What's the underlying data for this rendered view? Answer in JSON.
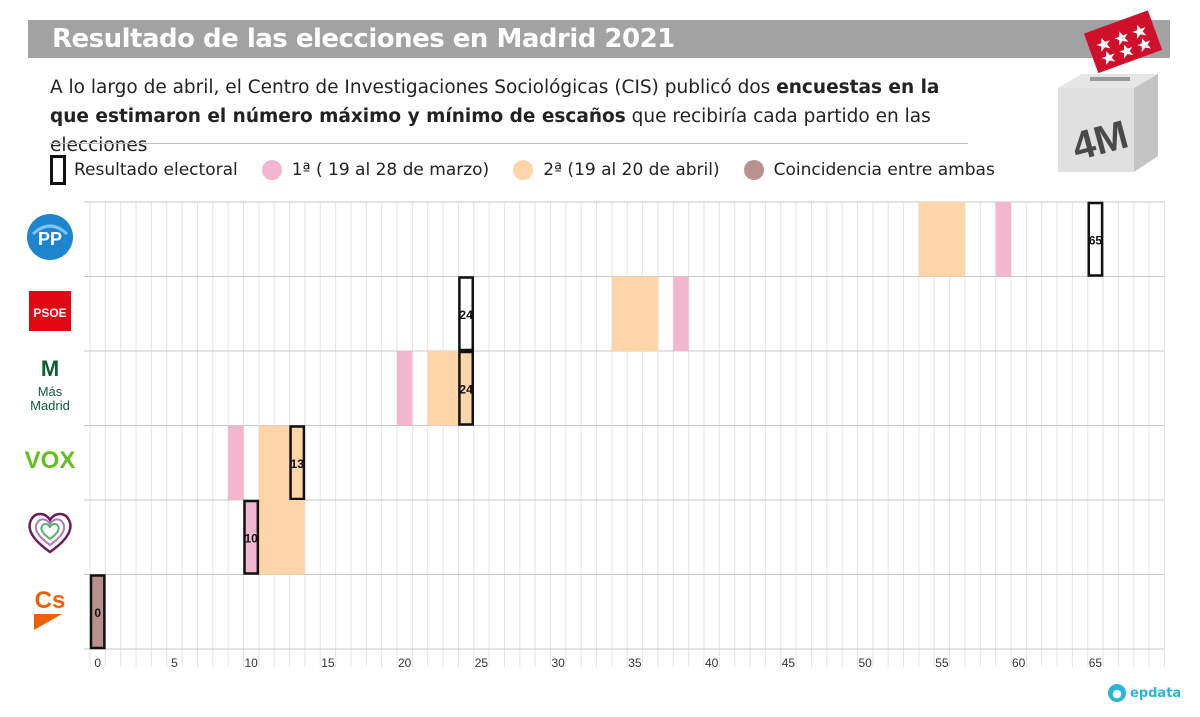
{
  "header": {
    "title": "Resultado de las elecciones en Madrid 2021",
    "subtitle_parts": [
      {
        "text": "A lo largo de abril, el Centro de Investigaciones Sociológicas (CIS) publicó dos ",
        "bold": false
      },
      {
        "text": "encuestas en la que estimaron el número máximo y mínimo de escaños",
        "bold": true
      },
      {
        "text": " que recibiría cada partido en las elecciones",
        "bold": false
      }
    ]
  },
  "badge": {
    "text": "4M"
  },
  "legend": {
    "result": "Resultado electoral",
    "survey1": "1ª ( 19 al 28 de marzo)",
    "survey2": "2ª (19 al 20 de abril)",
    "overlap": "Coincidencia entre ambas"
  },
  "colors": {
    "survey1": "#f2b6cf",
    "survey2": "#fdd5a8",
    "overlap": "#b8908f",
    "result_border": "#111111",
    "pp": "#1d84ce",
    "psoe": "#e30613",
    "mas_madrid": "#0f5c3a",
    "vox": "#63be21",
    "podemos": "#6b1f5c",
    "cs": "#eb6109"
  },
  "parties": [
    {
      "key": "pp",
      "logo_text": "PP"
    },
    {
      "key": "psoe",
      "logo_text": "PSOE"
    },
    {
      "key": "mas_madrid",
      "logo_text": "Más Madrid"
    },
    {
      "key": "vox",
      "logo_text": "VOX"
    },
    {
      "key": "podemos",
      "logo_text": ""
    },
    {
      "key": "cs",
      "logo_text": "Cs"
    }
  ],
  "chart_data": {
    "type": "bar",
    "orientation": "horizontal-ranges",
    "x_ticks": [
      0,
      5,
      10,
      15,
      20,
      25,
      30,
      35,
      40,
      45,
      50,
      55,
      60,
      65
    ],
    "xlim": [
      0,
      70
    ],
    "grid": true,
    "rows": [
      {
        "party": "pp",
        "result": 65,
        "survey1": [
          59,
          59
        ],
        "survey2": [
          54,
          56
        ],
        "overlap": []
      },
      {
        "party": "psoe",
        "result": 24,
        "survey1": [
          38,
          38
        ],
        "survey2": [
          34,
          36
        ],
        "overlap": []
      },
      {
        "party": "mas_madrid",
        "result": 24,
        "survey1": [
          20,
          20
        ],
        "survey2": [
          22,
          24
        ],
        "overlap": []
      },
      {
        "party": "vox",
        "result": 13,
        "survey1": [
          9,
          9
        ],
        "survey2": [
          11,
          13
        ],
        "overlap": []
      },
      {
        "party": "podemos",
        "result": 10,
        "survey1": [
          10,
          10
        ],
        "survey2": [
          11,
          13
        ],
        "overlap": []
      },
      {
        "party": "cs",
        "result": 0,
        "survey1": [],
        "survey2": [],
        "overlap": [
          0,
          0
        ]
      }
    ]
  },
  "footer": {
    "brand": "epdata"
  }
}
